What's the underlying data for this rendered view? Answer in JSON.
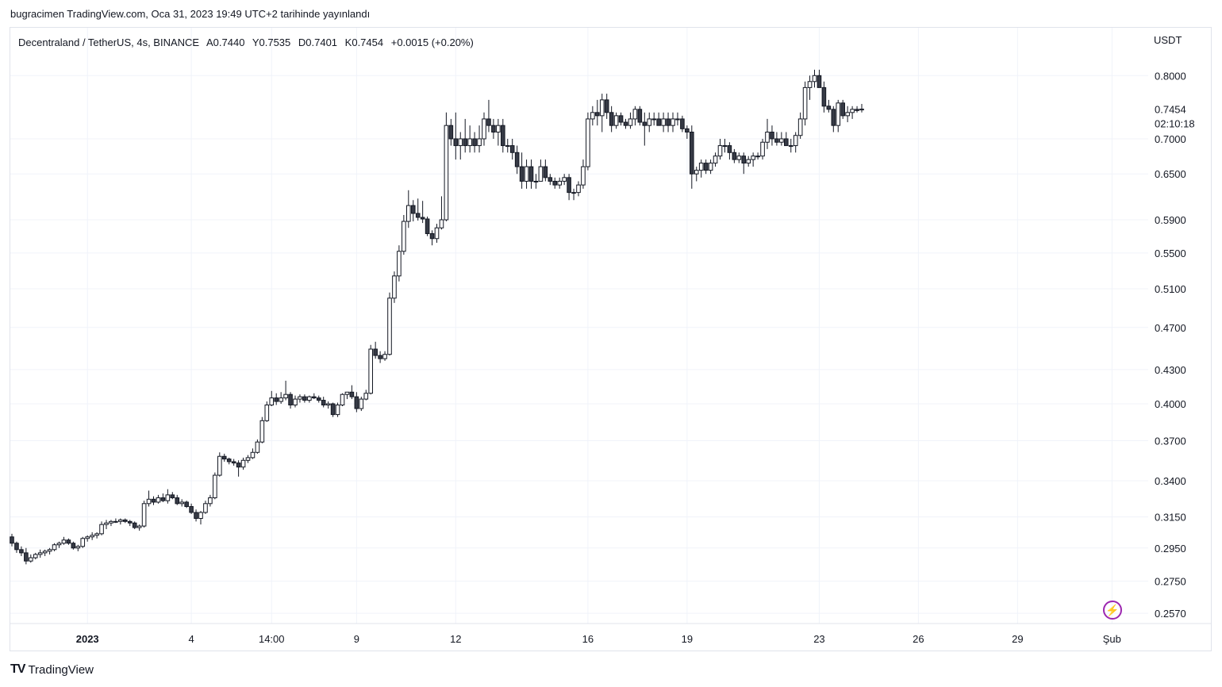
{
  "publisher": "bugracimen TradingView.com, Oca 31, 2023 19:49 UTC+2 tarihinde yayınlandı",
  "legend": {
    "symbol": "Decentraland / TetherUS, 4s, BINANCE",
    "open": "A0.7440",
    "high": "Y0.7535",
    "low": "D0.7401",
    "close": "K0.7454",
    "change": "+0.0015 (+0.20%)"
  },
  "footer_brand": "TradingView",
  "bolt_icon": "lightning-icon",
  "chart_data": {
    "type": "candlestick",
    "y_unit": "USDT",
    "y_scale": "log",
    "ylim": [
      0.2515,
      0.885
    ],
    "y_ticks": [
      "0.8000",
      "0.7000",
      "0.6500",
      "0.5900",
      "0.5500",
      "0.5100",
      "0.4700",
      "0.4300",
      "0.4000",
      "0.3700",
      "0.3400",
      "0.3150",
      "0.2950",
      "0.2750",
      "0.2570"
    ],
    "last_price": "0.7454",
    "countdown": "02:10:18",
    "x_ticks": [
      {
        "label": "2023",
        "bold": true,
        "candle_index": 16
      },
      {
        "label": "4",
        "candle_index": 38
      },
      {
        "label": "14:00",
        "candle_index": 55
      },
      {
        "label": "9",
        "candle_index": 73
      },
      {
        "label": "12",
        "candle_index": 94
      },
      {
        "label": "16",
        "candle_index": 122
      },
      {
        "label": "19",
        "candle_index": 143
      },
      {
        "label": "23",
        "candle_index": 171
      },
      {
        "label": "26",
        "candle_index": 192
      },
      {
        "label": "29",
        "candle_index": 213
      },
      {
        "label": "Şub",
        "candle_index": 233
      }
    ],
    "candles": [
      [
        0.302,
        0.304,
        0.296,
        0.298
      ],
      [
        0.298,
        0.299,
        0.292,
        0.294
      ],
      [
        0.294,
        0.296,
        0.29,
        0.292
      ],
      [
        0.292,
        0.295,
        0.285,
        0.287
      ],
      [
        0.287,
        0.291,
        0.286,
        0.289
      ],
      [
        0.289,
        0.292,
        0.288,
        0.291
      ],
      [
        0.291,
        0.294,
        0.289,
        0.292
      ],
      [
        0.292,
        0.294,
        0.29,
        0.293
      ],
      [
        0.293,
        0.295,
        0.291,
        0.294
      ],
      [
        0.294,
        0.298,
        0.293,
        0.297
      ],
      [
        0.297,
        0.299,
        0.295,
        0.298
      ],
      [
        0.298,
        0.302,
        0.297,
        0.3
      ],
      [
        0.3,
        0.301,
        0.297,
        0.298
      ],
      [
        0.298,
        0.299,
        0.294,
        0.295
      ],
      [
        0.295,
        0.297,
        0.293,
        0.296
      ],
      [
        0.296,
        0.302,
        0.295,
        0.301
      ],
      [
        0.301,
        0.303,
        0.299,
        0.302
      ],
      [
        0.302,
        0.305,
        0.3,
        0.303
      ],
      [
        0.303,
        0.305,
        0.301,
        0.304
      ],
      [
        0.304,
        0.312,
        0.303,
        0.31
      ],
      [
        0.31,
        0.313,
        0.307,
        0.311
      ],
      [
        0.311,
        0.313,
        0.309,
        0.312
      ],
      [
        0.312,
        0.314,
        0.311,
        0.312
      ],
      [
        0.312,
        0.314,
        0.31,
        0.313
      ],
      [
        0.313,
        0.314,
        0.311,
        0.312
      ],
      [
        0.312,
        0.313,
        0.309,
        0.311
      ],
      [
        0.311,
        0.312,
        0.307,
        0.308
      ],
      [
        0.308,
        0.31,
        0.306,
        0.309
      ],
      [
        0.309,
        0.326,
        0.308,
        0.324
      ],
      [
        0.324,
        0.333,
        0.322,
        0.327
      ],
      [
        0.327,
        0.329,
        0.323,
        0.325
      ],
      [
        0.325,
        0.33,
        0.324,
        0.328
      ],
      [
        0.328,
        0.331,
        0.325,
        0.326
      ],
      [
        0.326,
        0.334,
        0.324,
        0.33
      ],
      [
        0.33,
        0.332,
        0.327,
        0.328
      ],
      [
        0.328,
        0.33,
        0.323,
        0.324
      ],
      [
        0.324,
        0.327,
        0.322,
        0.325
      ],
      [
        0.325,
        0.326,
        0.321,
        0.322
      ],
      [
        0.322,
        0.324,
        0.317,
        0.318
      ],
      [
        0.318,
        0.32,
        0.312,
        0.314
      ],
      [
        0.314,
        0.319,
        0.31,
        0.318
      ],
      [
        0.318,
        0.326,
        0.317,
        0.324
      ],
      [
        0.324,
        0.33,
        0.322,
        0.328
      ],
      [
        0.328,
        0.346,
        0.327,
        0.344
      ],
      [
        0.344,
        0.361,
        0.343,
        0.358
      ],
      [
        0.358,
        0.36,
        0.354,
        0.356
      ],
      [
        0.356,
        0.357,
        0.352,
        0.354
      ],
      [
        0.354,
        0.356,
        0.351,
        0.353
      ],
      [
        0.353,
        0.355,
        0.343,
        0.35
      ],
      [
        0.35,
        0.357,
        0.348,
        0.355
      ],
      [
        0.355,
        0.359,
        0.353,
        0.357
      ],
      [
        0.357,
        0.364,
        0.356,
        0.361
      ],
      [
        0.361,
        0.371,
        0.36,
        0.369
      ],
      [
        0.369,
        0.389,
        0.368,
        0.386
      ],
      [
        0.386,
        0.402,
        0.385,
        0.399
      ],
      [
        0.399,
        0.411,
        0.398,
        0.405
      ],
      [
        0.405,
        0.409,
        0.399,
        0.402
      ],
      [
        0.402,
        0.41,
        0.4,
        0.405
      ],
      [
        0.405,
        0.42,
        0.403,
        0.408
      ],
      [
        0.408,
        0.41,
        0.396,
        0.399
      ],
      [
        0.399,
        0.407,
        0.397,
        0.404
      ],
      [
        0.404,
        0.408,
        0.401,
        0.406
      ],
      [
        0.406,
        0.408,
        0.401,
        0.403
      ],
      [
        0.403,
        0.407,
        0.401,
        0.406
      ],
      [
        0.406,
        0.409,
        0.404,
        0.405
      ],
      [
        0.405,
        0.407,
        0.401,
        0.403
      ],
      [
        0.403,
        0.406,
        0.397,
        0.399
      ],
      [
        0.399,
        0.402,
        0.396,
        0.4
      ],
      [
        0.4,
        0.401,
        0.389,
        0.391
      ],
      [
        0.391,
        0.401,
        0.389,
        0.399
      ],
      [
        0.399,
        0.409,
        0.398,
        0.408
      ],
      [
        0.408,
        0.41,
        0.404,
        0.41
      ],
      [
        0.41,
        0.416,
        0.404,
        0.406
      ],
      [
        0.406,
        0.41,
        0.393,
        0.396
      ],
      [
        0.396,
        0.406,
        0.394,
        0.404
      ],
      [
        0.404,
        0.412,
        0.403,
        0.409
      ],
      [
        0.409,
        0.453,
        0.408,
        0.449
      ],
      [
        0.449,
        0.456,
        0.44,
        0.443
      ],
      [
        0.443,
        0.447,
        0.436,
        0.44
      ],
      [
        0.44,
        0.447,
        0.438,
        0.444
      ],
      [
        0.444,
        0.506,
        0.443,
        0.5
      ],
      [
        0.5,
        0.529,
        0.495,
        0.524
      ],
      [
        0.524,
        0.559,
        0.518,
        0.552
      ],
      [
        0.552,
        0.596,
        0.548,
        0.588
      ],
      [
        0.588,
        0.628,
        0.58,
        0.608
      ],
      [
        0.608,
        0.615,
        0.588,
        0.598
      ],
      [
        0.598,
        0.617,
        0.589,
        0.593
      ],
      [
        0.593,
        0.614,
        0.586,
        0.591
      ],
      [
        0.591,
        0.594,
        0.57,
        0.573
      ],
      [
        0.573,
        0.577,
        0.559,
        0.567
      ],
      [
        0.567,
        0.585,
        0.562,
        0.58
      ],
      [
        0.58,
        0.62,
        0.578,
        0.59
      ],
      [
        0.59,
        0.74,
        0.588,
        0.72
      ],
      [
        0.72,
        0.73,
        0.69,
        0.7
      ],
      [
        0.7,
        0.74,
        0.67,
        0.69
      ],
      [
        0.69,
        0.71,
        0.67,
        0.7
      ],
      [
        0.7,
        0.73,
        0.68,
        0.69
      ],
      [
        0.69,
        0.72,
        0.68,
        0.7
      ],
      [
        0.7,
        0.71,
        0.68,
        0.69
      ],
      [
        0.69,
        0.72,
        0.68,
        0.7
      ],
      [
        0.7,
        0.74,
        0.69,
        0.73
      ],
      [
        0.73,
        0.76,
        0.71,
        0.72
      ],
      [
        0.72,
        0.73,
        0.7,
        0.71
      ],
      [
        0.71,
        0.73,
        0.69,
        0.72
      ],
      [
        0.72,
        0.73,
        0.68,
        0.69
      ],
      [
        0.69,
        0.7,
        0.68,
        0.69
      ],
      [
        0.69,
        0.7,
        0.67,
        0.68
      ],
      [
        0.68,
        0.69,
        0.65,
        0.66
      ],
      [
        0.66,
        0.68,
        0.63,
        0.64
      ],
      [
        0.64,
        0.67,
        0.63,
        0.66
      ],
      [
        0.66,
        0.67,
        0.63,
        0.64
      ],
      [
        0.64,
        0.65,
        0.63,
        0.64
      ],
      [
        0.64,
        0.67,
        0.64,
        0.66
      ],
      [
        0.66,
        0.67,
        0.64,
        0.645
      ],
      [
        0.645,
        0.65,
        0.635,
        0.64
      ],
      [
        0.64,
        0.645,
        0.63,
        0.635
      ],
      [
        0.635,
        0.645,
        0.63,
        0.64
      ],
      [
        0.64,
        0.65,
        0.635,
        0.645
      ],
      [
        0.645,
        0.65,
        0.615,
        0.625
      ],
      [
        0.625,
        0.63,
        0.615,
        0.625
      ],
      [
        0.625,
        0.64,
        0.62,
        0.635
      ],
      [
        0.635,
        0.67,
        0.63,
        0.66
      ],
      [
        0.66,
        0.74,
        0.655,
        0.73
      ],
      [
        0.73,
        0.75,
        0.72,
        0.74
      ],
      [
        0.74,
        0.76,
        0.72,
        0.735
      ],
      [
        0.735,
        0.77,
        0.71,
        0.76
      ],
      [
        0.76,
        0.77,
        0.73,
        0.74
      ],
      [
        0.74,
        0.75,
        0.71,
        0.72
      ],
      [
        0.72,
        0.74,
        0.715,
        0.735
      ],
      [
        0.735,
        0.74,
        0.72,
        0.725
      ],
      [
        0.725,
        0.73,
        0.715,
        0.72
      ],
      [
        0.72,
        0.74,
        0.715,
        0.73
      ],
      [
        0.73,
        0.75,
        0.72,
        0.745
      ],
      [
        0.745,
        0.75,
        0.72,
        0.725
      ],
      [
        0.725,
        0.74,
        0.69,
        0.72
      ],
      [
        0.72,
        0.74,
        0.71,
        0.73
      ],
      [
        0.73,
        0.74,
        0.72,
        0.73
      ],
      [
        0.73,
        0.74,
        0.72,
        0.72
      ],
      [
        0.72,
        0.74,
        0.71,
        0.73
      ],
      [
        0.73,
        0.74,
        0.71,
        0.72
      ],
      [
        0.72,
        0.74,
        0.71,
        0.73
      ],
      [
        0.73,
        0.74,
        0.72,
        0.73
      ],
      [
        0.73,
        0.735,
        0.71,
        0.715
      ],
      [
        0.715,
        0.72,
        0.7,
        0.71
      ],
      [
        0.71,
        0.72,
        0.63,
        0.65
      ],
      [
        0.65,
        0.66,
        0.64,
        0.655
      ],
      [
        0.655,
        0.67,
        0.645,
        0.665
      ],
      [
        0.665,
        0.67,
        0.65,
        0.655
      ],
      [
        0.655,
        0.67,
        0.65,
        0.665
      ],
      [
        0.665,
        0.68,
        0.66,
        0.675
      ],
      [
        0.675,
        0.7,
        0.67,
        0.69
      ],
      [
        0.69,
        0.7,
        0.68,
        0.69
      ],
      [
        0.69,
        0.695,
        0.67,
        0.68
      ],
      [
        0.68,
        0.685,
        0.665,
        0.67
      ],
      [
        0.67,
        0.68,
        0.665,
        0.675
      ],
      [
        0.675,
        0.68,
        0.65,
        0.665
      ],
      [
        0.665,
        0.675,
        0.66,
        0.67
      ],
      [
        0.67,
        0.68,
        0.66,
        0.675
      ],
      [
        0.675,
        0.68,
        0.67,
        0.675
      ],
      [
        0.675,
        0.7,
        0.67,
        0.695
      ],
      [
        0.695,
        0.73,
        0.685,
        0.71
      ],
      [
        0.71,
        0.72,
        0.69,
        0.7
      ],
      [
        0.7,
        0.71,
        0.69,
        0.695
      ],
      [
        0.695,
        0.71,
        0.69,
        0.7
      ],
      [
        0.7,
        0.71,
        0.69,
        0.69
      ],
      [
        0.69,
        0.7,
        0.68,
        0.69
      ],
      [
        0.69,
        0.71,
        0.68,
        0.705
      ],
      [
        0.705,
        0.74,
        0.7,
        0.73
      ],
      [
        0.73,
        0.79,
        0.72,
        0.78
      ],
      [
        0.78,
        0.8,
        0.76,
        0.79
      ],
      [
        0.79,
        0.81,
        0.78,
        0.8
      ],
      [
        0.8,
        0.81,
        0.78,
        0.78
      ],
      [
        0.78,
        0.79,
        0.74,
        0.75
      ],
      [
        0.75,
        0.76,
        0.74,
        0.745
      ],
      [
        0.745,
        0.75,
        0.71,
        0.72
      ],
      [
        0.72,
        0.76,
        0.71,
        0.755
      ],
      [
        0.755,
        0.76,
        0.73,
        0.735
      ],
      [
        0.735,
        0.75,
        0.725,
        0.74
      ],
      [
        0.74,
        0.75,
        0.73,
        0.745
      ],
      [
        0.745,
        0.75,
        0.74,
        0.743
      ],
      [
        0.744,
        0.7535,
        0.7401,
        0.7454
      ]
    ]
  }
}
